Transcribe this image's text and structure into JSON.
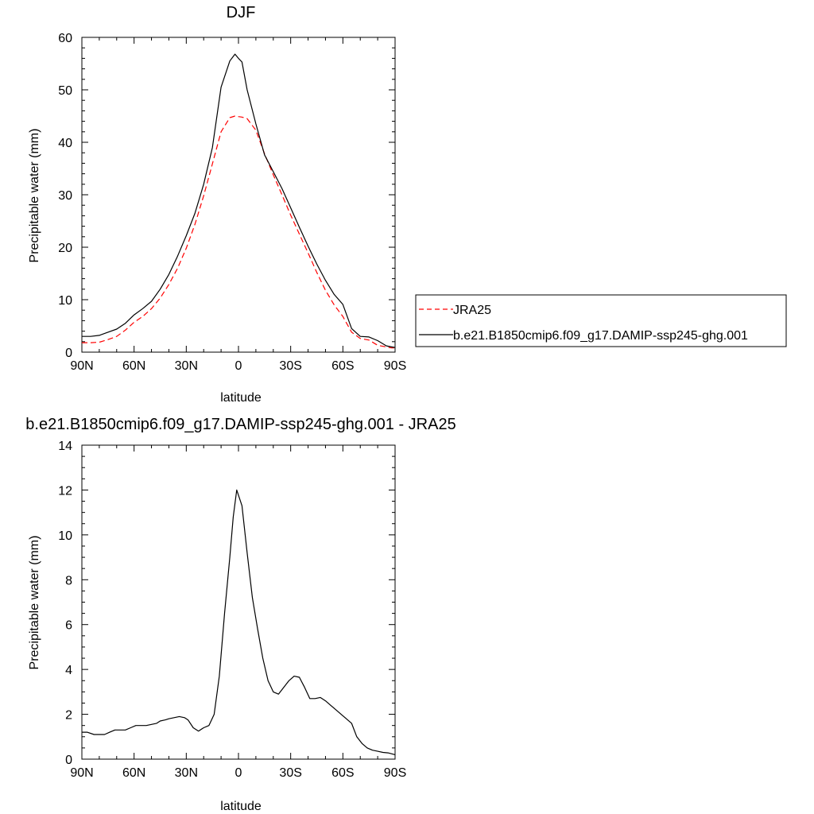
{
  "chart_data": [
    {
      "type": "line",
      "title": "DJF",
      "xlabel": "latitude",
      "ylabel": "Precipitable water (mm)",
      "xlim": [
        90,
        -90
      ],
      "ylim": [
        0,
        60
      ],
      "yticks": [
        0,
        10,
        20,
        30,
        40,
        50,
        60
      ],
      "xticks": [
        {
          "value": 90,
          "label": "90N"
        },
        {
          "value": 60,
          "label": "60N"
        },
        {
          "value": 30,
          "label": "30N"
        },
        {
          "value": 0,
          "label": "0"
        },
        {
          "value": -30,
          "label": "30S"
        },
        {
          "value": -60,
          "label": "60S"
        },
        {
          "value": -90,
          "label": "90S"
        }
      ],
      "legend": {
        "placement": "right",
        "entries": [
          "JRA25",
          "b.e21.B1850cmip6.f09_g17.DAMIP-ssp245-ghg.001"
        ]
      },
      "series": [
        {
          "name": "JRA25",
          "color": "#ff0000",
          "style": "dashed",
          "x": [
            90,
            85,
            80,
            75,
            70,
            65,
            60,
            55,
            50,
            45,
            40,
            35,
            30,
            25,
            20,
            15,
            10,
            5,
            2,
            0,
            -2,
            -5,
            -10,
            -15,
            -20,
            -25,
            -30,
            -35,
            -40,
            -45,
            -50,
            -55,
            -60,
            -65,
            -70,
            -75,
            -80,
            -85,
            -88,
            -90
          ],
          "y": [
            1.8,
            1.8,
            1.9,
            2.4,
            3.0,
            4.2,
            5.7,
            6.8,
            8.3,
            10.3,
            12.9,
            16.0,
            19.8,
            24.4,
            29.8,
            35.9,
            42.0,
            44.7,
            45.0,
            44.9,
            44.8,
            44.5,
            42.3,
            37.8,
            33.8,
            30.0,
            26.1,
            22.5,
            18.9,
            15.2,
            11.8,
            9.0,
            6.8,
            3.8,
            2.6,
            2.3,
            1.3,
            1.0,
            0.8,
            0.8
          ]
        },
        {
          "name": "b.e21.B1850cmip6.f09_g17.DAMIP-ssp245-ghg.001",
          "color": "#000000",
          "style": "solid",
          "x": [
            90,
            85,
            80,
            75,
            70,
            65,
            60,
            55,
            50,
            45,
            40,
            35,
            30,
            25,
            20,
            15,
            10,
            5,
            2,
            0,
            -2,
            -5,
            -10,
            -15,
            -20,
            -25,
            -30,
            -35,
            -40,
            -45,
            -50,
            -55,
            -60,
            -65,
            -70,
            -75,
            -80,
            -85,
            -88,
            -90
          ],
          "y": [
            3.0,
            3.0,
            3.2,
            3.8,
            4.4,
            5.5,
            7.1,
            8.3,
            9.7,
            12.0,
            14.8,
            18.3,
            22.2,
            26.5,
            32.0,
            39.0,
            50.5,
            55.5,
            56.8,
            56.0,
            55.3,
            50.0,
            43.5,
            37.6,
            34.4,
            31.2,
            27.5,
            23.8,
            20.2,
            16.8,
            13.7,
            11.0,
            9.1,
            4.5,
            3.0,
            2.9,
            2.2,
            1.2,
            1.0,
            0.9
          ]
        }
      ]
    },
    {
      "type": "line",
      "title": "b.e21.B1850cmip6.f09_g17.DAMIP-ssp245-ghg.001 - JRA25",
      "xlabel": "latitude",
      "ylabel": "Precipitable water (mm)",
      "xlim": [
        90,
        -90
      ],
      "ylim": [
        0,
        14
      ],
      "yticks": [
        0,
        2,
        4,
        6,
        8,
        10,
        12,
        14
      ],
      "xticks": [
        {
          "value": 90,
          "label": "90N"
        },
        {
          "value": 60,
          "label": "60N"
        },
        {
          "value": 30,
          "label": "30N"
        },
        {
          "value": 0,
          "label": "0"
        },
        {
          "value": -30,
          "label": "30S"
        },
        {
          "value": -60,
          "label": "60S"
        },
        {
          "value": -90,
          "label": "90S"
        }
      ],
      "series": [
        {
          "color": "#000000",
          "style": "solid",
          "x": [
            90,
            87,
            83,
            80,
            77,
            74,
            71,
            68,
            65,
            62,
            59,
            56,
            53,
            50,
            47,
            45,
            42,
            40,
            37,
            34,
            31,
            29,
            26,
            23,
            20,
            17,
            14,
            11,
            8,
            5,
            3,
            1,
            -2,
            -5,
            -8,
            -11,
            -14,
            -17,
            -20,
            -23,
            -26,
            -29,
            -32,
            -35,
            -38,
            -41,
            -44,
            -47,
            -50,
            -53,
            -56,
            -59,
            -62,
            -65,
            -68,
            -71,
            -74,
            -77,
            -80,
            -83,
            -86,
            -90
          ],
          "y": [
            1.2,
            1.2,
            1.1,
            1.1,
            1.1,
            1.2,
            1.3,
            1.3,
            1.3,
            1.4,
            1.5,
            1.5,
            1.5,
            1.55,
            1.6,
            1.7,
            1.75,
            1.8,
            1.85,
            1.9,
            1.85,
            1.75,
            1.4,
            1.25,
            1.4,
            1.5,
            2.0,
            3.7,
            6.5,
            9.0,
            10.8,
            12.0,
            11.3,
            9.2,
            7.2,
            5.8,
            4.5,
            3.5,
            3.0,
            2.9,
            3.2,
            3.5,
            3.7,
            3.65,
            3.2,
            2.7,
            2.7,
            2.75,
            2.6,
            2.4,
            2.2,
            2.0,
            1.8,
            1.6,
            1.0,
            0.7,
            0.5,
            0.4,
            0.35,
            0.3,
            0.28,
            0.2
          ]
        }
      ]
    }
  ]
}
